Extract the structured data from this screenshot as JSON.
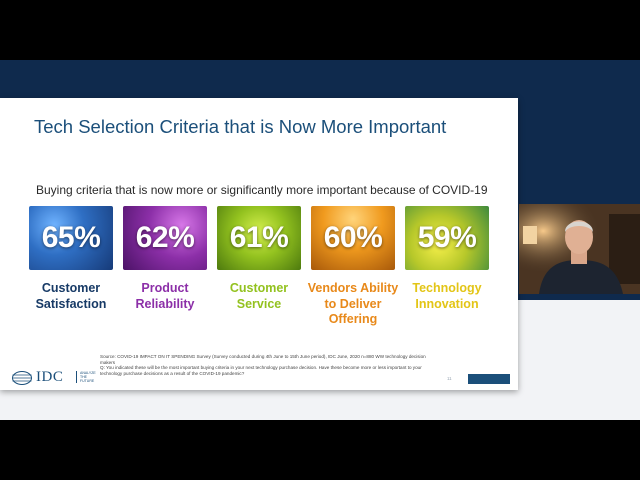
{
  "slide": {
    "title": "Tech Selection Criteria that is Now More Important",
    "subtitle": "Buying criteria that is now more or significantly more important because of COVID-19",
    "criteria": [
      {
        "percent": "65%",
        "label": "Customer Satisfaction",
        "color": "#173a66"
      },
      {
        "percent": "62%",
        "label": "Product Reliability",
        "color": "#8c2fa8"
      },
      {
        "percent": "61%",
        "label": "Customer Service",
        "color": "#93c21f"
      },
      {
        "percent": "60%",
        "label": "Vendors Ability to Deliver Offering",
        "color": "#e8891a"
      },
      {
        "percent": "59%",
        "label": "Technology Innovation",
        "color": "#e3c516"
      }
    ],
    "source": "Source: COVID-19 IMPACT ON IT SPENDING Survey (Survey conducted during 4th June to 15th June period), IDC June, 2020 n=880 WW technology decision makers",
    "question": "Q: You indicated these will be the most important buying criteria in your next technology purchase decision. Have these become more or less important to your technology purchase decisions as a result of the COVID-19 pandemic?",
    "logo_text": "IDC",
    "logo_tagline": "ANALYZE THE FUTURE",
    "page_number": "11"
  },
  "colors": {
    "brand": "#1b4f7a",
    "backdrop_band": "#0f2a4d"
  },
  "webcam": {
    "icon": "presenter-video-feed"
  }
}
